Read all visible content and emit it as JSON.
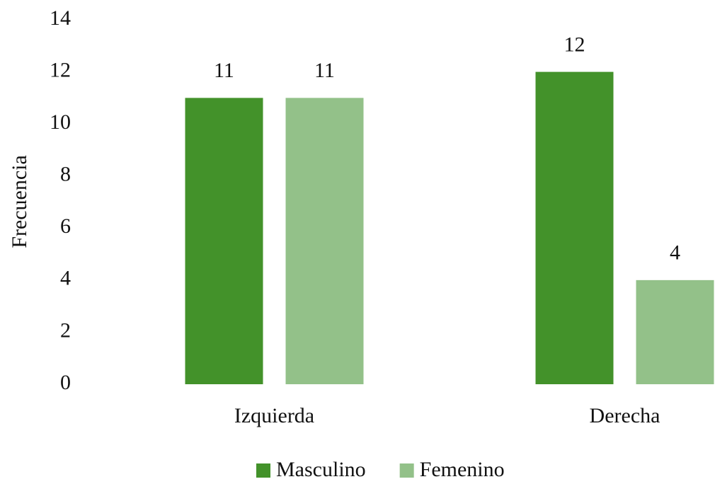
{
  "chart_data": {
    "type": "bar",
    "y_label": "Frecuencia",
    "categories": [
      "Izquierda",
      "Derecha"
    ],
    "series": [
      {
        "name": "Masculino",
        "color": "#43922a",
        "values": [
          11,
          12
        ]
      },
      {
        "name": "Femenino",
        "color": "#93c189",
        "values": [
          11,
          4
        ]
      }
    ],
    "ylim": [
      0,
      14
    ],
    "yticks": [
      0,
      2,
      4,
      6,
      8,
      10,
      12,
      14
    ],
    "grid": false,
    "legend": "bottom"
  }
}
